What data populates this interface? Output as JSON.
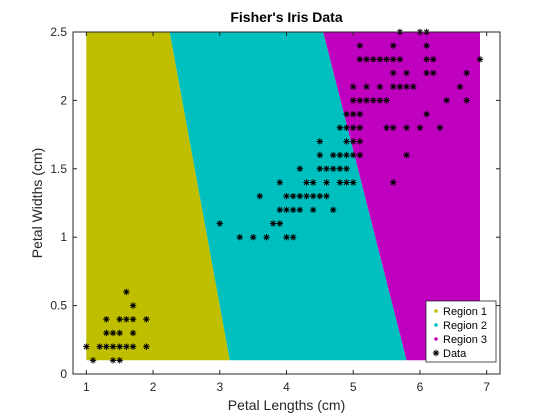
{
  "chart_data": {
    "type": "scatter",
    "title": "Fisher's Iris Data",
    "xlabel": "Petal Lengths (cm)",
    "ylabel": "Petal Widths (cm)",
    "xlim": [
      0.8,
      7.2
    ],
    "ylim": [
      0,
      2.5
    ],
    "xticks": [
      1,
      2,
      3,
      4,
      5,
      6,
      7
    ],
    "xtick_labels": [
      "1",
      "2",
      "3",
      "4",
      "5",
      "6",
      "7"
    ],
    "yticks": [
      0,
      0.5,
      1,
      1.5,
      2,
      2.5
    ],
    "ytick_labels": [
      "0",
      "0.5",
      "1",
      "1.5",
      "2",
      "2.5"
    ],
    "grid": false,
    "legend_position": "bottom-right",
    "regions": {
      "x_range": [
        1,
        6.9
      ],
      "y_range": [
        0.1,
        2.5
      ],
      "boundary_1_2": {
        "at_y_min": 3.15,
        "at_y_max": 2.25
      },
      "boundary_2_3": {
        "at_y_min": 5.8,
        "at_y_max": 4.55
      },
      "items": [
        {
          "name": "Region 1",
          "color": "#bfbf00"
        },
        {
          "name": "Region 2",
          "color": "#00bfbf"
        },
        {
          "name": "Region 3",
          "color": "#bf00bf"
        }
      ]
    },
    "series": [
      {
        "name": "Data",
        "marker": "asterisk",
        "color": "#000000",
        "points": [
          [
            1.0,
            0.2
          ],
          [
            1.1,
            0.1
          ],
          [
            1.2,
            0.2
          ],
          [
            1.3,
            0.2
          ],
          [
            1.4,
            0.2
          ],
          [
            1.5,
            0.2
          ],
          [
            1.6,
            0.2
          ],
          [
            1.7,
            0.2
          ],
          [
            1.9,
            0.2
          ],
          [
            1.3,
            0.3
          ],
          [
            1.4,
            0.3
          ],
          [
            1.5,
            0.3
          ],
          [
            1.7,
            0.3
          ],
          [
            1.3,
            0.4
          ],
          [
            1.5,
            0.4
          ],
          [
            1.6,
            0.4
          ],
          [
            1.7,
            0.4
          ],
          [
            1.9,
            0.4
          ],
          [
            1.4,
            0.1
          ],
          [
            1.5,
            0.1
          ],
          [
            1.7,
            0.5
          ],
          [
            1.6,
            0.6
          ],
          [
            3.0,
            1.1
          ],
          [
            3.3,
            1.0
          ],
          [
            3.5,
            1.0
          ],
          [
            3.7,
            1.0
          ],
          [
            3.9,
            1.1
          ],
          [
            3.8,
            1.1
          ],
          [
            3.6,
            1.3
          ],
          [
            3.9,
            1.2
          ],
          [
            4.0,
            1.2
          ],
          [
            4.1,
            1.2
          ],
          [
            4.2,
            1.2
          ],
          [
            4.4,
            1.2
          ],
          [
            4.7,
            1.2
          ],
          [
            3.9,
            1.4
          ],
          [
            4.0,
            1.3
          ],
          [
            4.1,
            1.3
          ],
          [
            4.2,
            1.3
          ],
          [
            4.3,
            1.3
          ],
          [
            4.4,
            1.3
          ],
          [
            4.5,
            1.3
          ],
          [
            4.6,
            1.3
          ],
          [
            4.0,
            1.0
          ],
          [
            4.1,
            1.0
          ],
          [
            4.9,
            1.5
          ],
          [
            4.2,
            1.5
          ],
          [
            4.5,
            1.5
          ],
          [
            4.6,
            1.5
          ],
          [
            4.7,
            1.5
          ],
          [
            4.8,
            1.5
          ],
          [
            4.3,
            1.4
          ],
          [
            4.4,
            1.4
          ],
          [
            4.6,
            1.4
          ],
          [
            4.8,
            1.4
          ],
          [
            4.9,
            1.4
          ],
          [
            5.0,
            1.4
          ],
          [
            5.6,
            1.4
          ],
          [
            4.5,
            1.6
          ],
          [
            4.7,
            1.6
          ],
          [
            4.8,
            1.6
          ],
          [
            4.9,
            1.6
          ],
          [
            5.0,
            1.6
          ],
          [
            5.1,
            1.6
          ],
          [
            4.5,
            1.7
          ],
          [
            4.9,
            1.7
          ],
          [
            5.0,
            1.7
          ],
          [
            5.1,
            1.7
          ],
          [
            4.8,
            1.8
          ],
          [
            4.9,
            1.8
          ],
          [
            5.0,
            1.8
          ],
          [
            5.1,
            1.8
          ],
          [
            5.5,
            1.8
          ],
          [
            5.6,
            1.8
          ],
          [
            5.8,
            1.8
          ],
          [
            6.0,
            1.8
          ],
          [
            6.3,
            1.8
          ],
          [
            4.9,
            1.9
          ],
          [
            5.0,
            1.9
          ],
          [
            5.1,
            1.9
          ],
          [
            5.8,
            1.6
          ],
          [
            6.1,
            1.9
          ],
          [
            5.0,
            2.0
          ],
          [
            5.1,
            2.0
          ],
          [
            5.2,
            2.0
          ],
          [
            5.3,
            2.0
          ],
          [
            5.4,
            2.0
          ],
          [
            5.5,
            2.0
          ],
          [
            6.4,
            2.0
          ],
          [
            6.7,
            2.0
          ],
          [
            5.0,
            2.1
          ],
          [
            5.2,
            2.1
          ],
          [
            5.4,
            2.1
          ],
          [
            5.6,
            2.1
          ],
          [
            5.7,
            2.1
          ],
          [
            5.8,
            2.1
          ],
          [
            5.9,
            2.1
          ],
          [
            6.6,
            2.1
          ],
          [
            5.6,
            2.2
          ],
          [
            5.8,
            2.2
          ],
          [
            6.1,
            2.2
          ],
          [
            6.2,
            2.2
          ],
          [
            5.1,
            2.3
          ],
          [
            5.2,
            2.3
          ],
          [
            5.3,
            2.3
          ],
          [
            5.4,
            2.3
          ],
          [
            5.6,
            2.3
          ],
          [
            5.7,
            2.3
          ],
          [
            6.1,
            2.3
          ],
          [
            6.9,
            2.3
          ],
          [
            6.7,
            2.2
          ],
          [
            5.1,
            2.4
          ],
          [
            5.6,
            2.4
          ],
          [
            6.1,
            2.4
          ],
          [
            5.7,
            2.5
          ],
          [
            6.0,
            2.5
          ],
          [
            6.1,
            2.5
          ],
          [
            5.5,
            2.3
          ],
          [
            6.2,
            2.3
          ]
        ]
      }
    ]
  }
}
